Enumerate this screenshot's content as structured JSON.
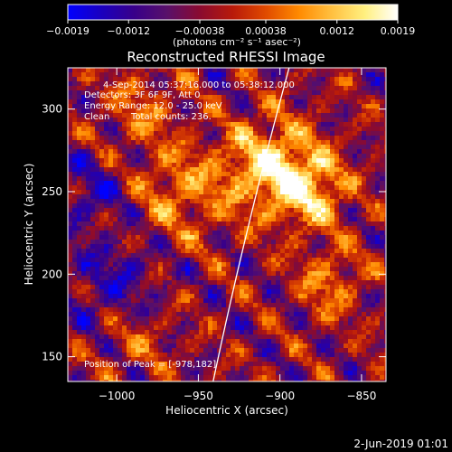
{
  "chart_data": {
    "type": "heatmap",
    "title": "Reconstructed RHESSI Image",
    "xlabel": "Heliocentric X (arcsec)",
    "ylabel": "Heliocentric Y (arcsec)",
    "xlim": [
      -1030,
      -835
    ],
    "ylim": [
      135,
      325
    ],
    "x_ticks": [
      -1000,
      -950,
      -900,
      -850
    ],
    "x_tick_labels": [
      "−1000",
      "−950",
      "−900",
      "−850"
    ],
    "y_ticks": [
      150,
      200,
      250,
      300
    ],
    "y_tick_labels": [
      "150",
      "200",
      "250",
      "300"
    ],
    "colorbar": {
      "range": [
        -0.0019,
        0.0019
      ],
      "ticks": [
        -0.0019,
        -0.0012,
        -0.00038,
        0.00038,
        0.0012,
        0.0019
      ],
      "tick_labels": [
        "−0.0019",
        "−0.0012",
        "−0.00038",
        "0.00038",
        "0.0012",
        "0.0019"
      ],
      "unit_label": "(photons cm⁻² s⁻¹ asec⁻²)",
      "colors": [
        "#0000ff",
        "#1a00c0",
        "#38008a",
        "#58106a",
        "#8a0a30",
        "#b81a0a",
        "#e04a00",
        "#ff8a00",
        "#ffc040",
        "#fff080",
        "#ffffff"
      ]
    },
    "annotations": {
      "time_range": "4-Sep-2014 05:37:16.000 to 05:38:12.000",
      "detectors": "Detectors: 3F 6F 9F, Att 0",
      "energy_range": "Energy Range: 12.0 - 25.0 keV",
      "clean_label": "Clean",
      "total_counts": "Total counts: 236.",
      "peak": "Position of Peak = [-978,182]"
    },
    "grid": false
  },
  "footer": {
    "date": "2-Jun-2019 01:01"
  }
}
